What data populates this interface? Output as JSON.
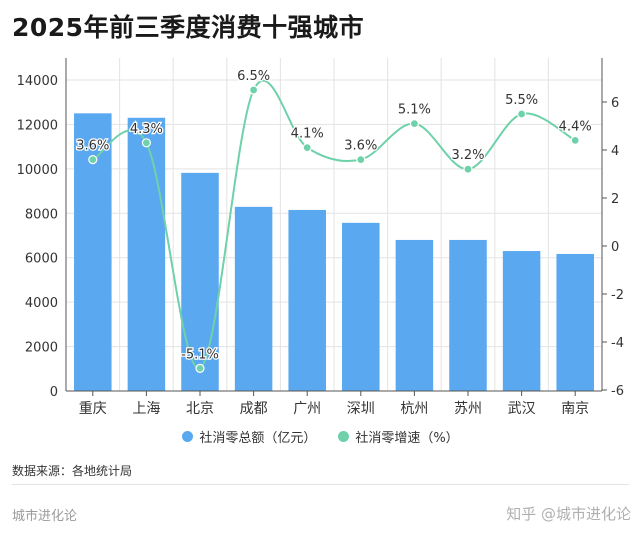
{
  "title": "2025年前三季度消费十强城市",
  "source": "数据来源：各地统计局",
  "brand": "城市进化论",
  "credit": "知乎 @城市进化论",
  "colors": {
    "bar": "#5aa8f0",
    "line": "#6fd1a9"
  },
  "legend": [
    {
      "label": "社消零总额（亿元）",
      "color": "#5aa8f0"
    },
    {
      "label": "社消零增速（%）",
      "color": "#6fd1a9"
    }
  ],
  "chart_data": {
    "type": "bar",
    "title": "2025年前三季度消费十强城市",
    "categories": [
      "重庆",
      "上海",
      "北京",
      "成都",
      "广州",
      "深圳",
      "杭州",
      "苏州",
      "武汉",
      "南京"
    ],
    "series": [
      {
        "name": "社消零总额（亿元）",
        "type": "bar",
        "axis": "left",
        "values": [
          12500,
          12300,
          9820,
          8290,
          8150,
          7570,
          6800,
          6800,
          6300,
          6170
        ]
      },
      {
        "name": "社消零增速（%）",
        "type": "line",
        "axis": "right",
        "values": [
          3.6,
          4.3,
          -5.1,
          6.5,
          4.1,
          3.6,
          5.1,
          3.2,
          5.5,
          4.4
        ],
        "labels": [
          "3.6%",
          "4.3%",
          "-5.1%",
          "6.5%",
          "4.1%",
          "3.6%",
          "5.1%",
          "3.2%",
          "5.5%",
          "4.4%"
        ]
      }
    ],
    "y_left": {
      "min": 0,
      "max": 14000,
      "ticks": [
        0,
        2000,
        4000,
        6000,
        8000,
        10000,
        12000,
        14000
      ]
    },
    "y_right": {
      "min": -6,
      "max": 6,
      "ticks": [
        -6,
        -4,
        -2,
        0,
        2,
        4,
        6
      ]
    },
    "grid": true,
    "legend_position": "bottom"
  }
}
